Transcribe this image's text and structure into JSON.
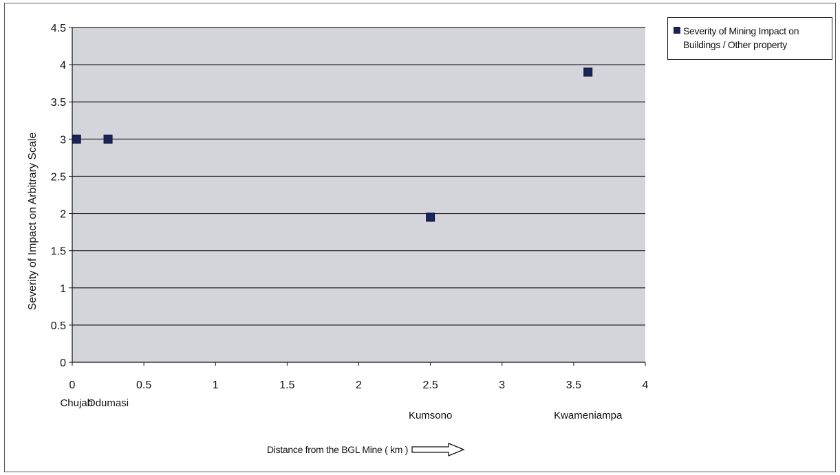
{
  "chart_data": {
    "type": "scatter",
    "ylabel": "Severity of Impact on Arbitrary Scale",
    "xlabel": "Distance from the BGL Mine  ( km )",
    "xlim": [
      0,
      4
    ],
    "ylim": [
      0,
      4.5
    ],
    "x_ticks": [
      "0",
      "0.5",
      "1",
      "1.5",
      "2",
      "2.5",
      "3",
      "3.5",
      "4"
    ],
    "y_ticks": [
      "0",
      "0.5",
      "1",
      "1.5",
      "2",
      "2.5",
      "3",
      "3.5",
      "4",
      "4.5"
    ],
    "grid": "horizontal",
    "legend_position": "top-right",
    "series": [
      {
        "name": "Severity of Mining Impact on Buildings / Other property",
        "color": "#1b2457",
        "points": [
          {
            "x": 0.03,
            "y": 3.0
          },
          {
            "x": 0.25,
            "y": 3.0
          },
          {
            "x": 2.5,
            "y": 1.95
          },
          {
            "x": 3.6,
            "y": 3.9
          }
        ]
      }
    ],
    "category_labels": [
      {
        "x": 0.03,
        "label": "Chujah"
      },
      {
        "x": 0.25,
        "label": "Odumasi"
      },
      {
        "x": 2.5,
        "label": "Kumsono"
      },
      {
        "x": 3.6,
        "label": "Kwameniampa"
      }
    ]
  },
  "colors": {
    "plot_background": "#d4d4db",
    "gridline": "#222222",
    "marker": "#1b2457"
  },
  "icons": {
    "xlabel_arrow": "right-arrow-icon"
  }
}
